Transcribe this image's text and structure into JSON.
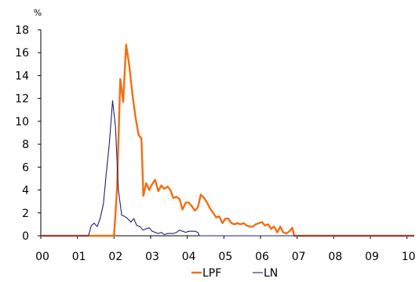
{
  "chart_data": {
    "type": "line",
    "ylabel": "%",
    "ylim": [
      0,
      18
    ],
    "xlim": [
      2000,
      2010.2
    ],
    "yticks": [
      0,
      2,
      4,
      6,
      8,
      10,
      12,
      14,
      16,
      18
    ],
    "ytick_labels": [
      "0",
      "2",
      "4",
      "6",
      "8",
      "10",
      "12",
      "14",
      "16",
      "18"
    ],
    "xticks": [
      2000,
      2001,
      2002,
      2003,
      2004,
      2005,
      2006,
      2007,
      2008,
      2009,
      2010
    ],
    "xtick_labels": [
      "00",
      "01",
      "02",
      "03",
      "04",
      "05",
      "06",
      "07",
      "08",
      "09",
      "10"
    ],
    "grid": false,
    "legend_position": "bottom-center",
    "series": [
      {
        "name": "LPF",
        "color": "#f26e12",
        "points": [
          [
            2000.0,
            0
          ],
          [
            2002.0,
            0
          ],
          [
            2002.08,
            4.0
          ],
          [
            2002.17,
            13.7
          ],
          [
            2002.25,
            11.7
          ],
          [
            2002.33,
            16.7
          ],
          [
            2002.42,
            14.8
          ],
          [
            2002.5,
            12.4
          ],
          [
            2002.58,
            10.5
          ],
          [
            2002.67,
            8.8
          ],
          [
            2002.75,
            8.5
          ],
          [
            2002.8,
            3.5
          ],
          [
            2002.88,
            4.6
          ],
          [
            2002.96,
            4.0
          ],
          [
            2003.04,
            4.5
          ],
          [
            2003.12,
            4.9
          ],
          [
            2003.21,
            3.9
          ],
          [
            2003.29,
            4.4
          ],
          [
            2003.37,
            4.1
          ],
          [
            2003.46,
            4.3
          ],
          [
            2003.54,
            4.0
          ],
          [
            2003.62,
            3.3
          ],
          [
            2003.71,
            3.4
          ],
          [
            2003.79,
            3.2
          ],
          [
            2003.87,
            2.3
          ],
          [
            2003.96,
            2.9
          ],
          [
            2004.04,
            2.9
          ],
          [
            2004.12,
            2.6
          ],
          [
            2004.21,
            2.2
          ],
          [
            2004.29,
            2.5
          ],
          [
            2004.37,
            3.6
          ],
          [
            2004.46,
            3.3
          ],
          [
            2004.54,
            2.9
          ],
          [
            2004.62,
            2.4
          ],
          [
            2004.71,
            2.0
          ],
          [
            2004.79,
            1.6
          ],
          [
            2004.87,
            1.7
          ],
          [
            2004.96,
            1.1
          ],
          [
            2005.04,
            1.5
          ],
          [
            2005.12,
            1.5
          ],
          [
            2005.21,
            1.1
          ],
          [
            2005.29,
            1.0
          ],
          [
            2005.37,
            1.1
          ],
          [
            2005.46,
            1.0
          ],
          [
            2005.54,
            1.1
          ],
          [
            2005.62,
            0.9
          ],
          [
            2005.71,
            0.8
          ],
          [
            2005.79,
            0.8
          ],
          [
            2005.87,
            1.0
          ],
          [
            2005.96,
            1.1
          ],
          [
            2006.04,
            1.2
          ],
          [
            2006.12,
            0.9
          ],
          [
            2006.21,
            1.0
          ],
          [
            2006.29,
            0.6
          ],
          [
            2006.37,
            0.8
          ],
          [
            2006.46,
            0.3
          ],
          [
            2006.54,
            0.8
          ],
          [
            2006.62,
            0.3
          ],
          [
            2006.71,
            0.2
          ],
          [
            2006.79,
            0.4
          ],
          [
            2006.87,
            0.7
          ],
          [
            2006.92,
            0.0
          ],
          [
            2010.2,
            0
          ]
        ]
      },
      {
        "name": "LN",
        "color": "#1f1f7a",
        "points": [
          [
            2000.0,
            0
          ],
          [
            2001.3,
            0
          ],
          [
            2001.38,
            0.9
          ],
          [
            2001.46,
            1.1
          ],
          [
            2001.54,
            0.8
          ],
          [
            2001.62,
            1.5
          ],
          [
            2001.71,
            2.8
          ],
          [
            2001.79,
            5.5
          ],
          [
            2001.87,
            8.0
          ],
          [
            2001.96,
            11.8
          ],
          [
            2002.04,
            9.5
          ],
          [
            2002.12,
            4.0
          ],
          [
            2002.21,
            1.8
          ],
          [
            2002.29,
            1.7
          ],
          [
            2002.37,
            1.5
          ],
          [
            2002.46,
            1.2
          ],
          [
            2002.54,
            1.5
          ],
          [
            2002.62,
            0.9
          ],
          [
            2002.71,
            0.8
          ],
          [
            2002.79,
            0.5
          ],
          [
            2002.87,
            0.6
          ],
          [
            2002.96,
            0.7
          ],
          [
            2003.04,
            0.4
          ],
          [
            2003.12,
            0.3
          ],
          [
            2003.21,
            0.2
          ],
          [
            2003.29,
            0.3
          ],
          [
            2003.37,
            0.1
          ],
          [
            2003.46,
            0.2
          ],
          [
            2003.54,
            0.2
          ],
          [
            2003.62,
            0.2
          ],
          [
            2003.71,
            0.3
          ],
          [
            2003.79,
            0.5
          ],
          [
            2003.87,
            0.4
          ],
          [
            2003.96,
            0.3
          ],
          [
            2004.04,
            0.4
          ],
          [
            2004.12,
            0.4
          ],
          [
            2004.21,
            0.4
          ],
          [
            2004.29,
            0.3
          ],
          [
            2004.33,
            0.0
          ],
          [
            2010.2,
            0
          ]
        ]
      }
    ]
  }
}
